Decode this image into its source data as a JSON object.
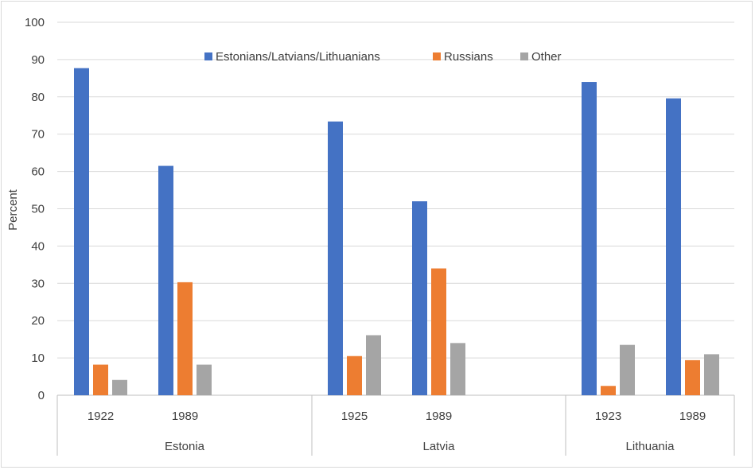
{
  "chart_data": {
    "type": "bar",
    "title": "",
    "ylabel": "Percent",
    "xlabel": "",
    "ylim": [
      0,
      100
    ],
    "yticks": [
      0,
      10,
      20,
      30,
      40,
      50,
      60,
      70,
      80,
      90,
      100
    ],
    "grid": true,
    "legend_position": "top",
    "groups": [
      {
        "name": "Estonia",
        "categories": [
          "1922",
          "1989"
        ]
      },
      {
        "name": "Latvia",
        "categories": [
          "1925",
          "1989"
        ]
      },
      {
        "name": "Lithuania",
        "categories": [
          "1923",
          "1989"
        ]
      }
    ],
    "series": [
      {
        "name": "Estonians/Latvians/Lithuanians",
        "color": "#4472c4",
        "values": [
          87.7,
          61.5,
          73.4,
          52.0,
          84.0,
          79.6
        ]
      },
      {
        "name": "Russians",
        "color": "#ed7d31",
        "values": [
          8.2,
          30.3,
          10.5,
          34.0,
          2.5,
          9.4
        ]
      },
      {
        "name": "Other",
        "color": "#a5a5a5",
        "values": [
          4.1,
          8.2,
          16.1,
          14.0,
          13.5,
          11.0
        ]
      }
    ]
  }
}
